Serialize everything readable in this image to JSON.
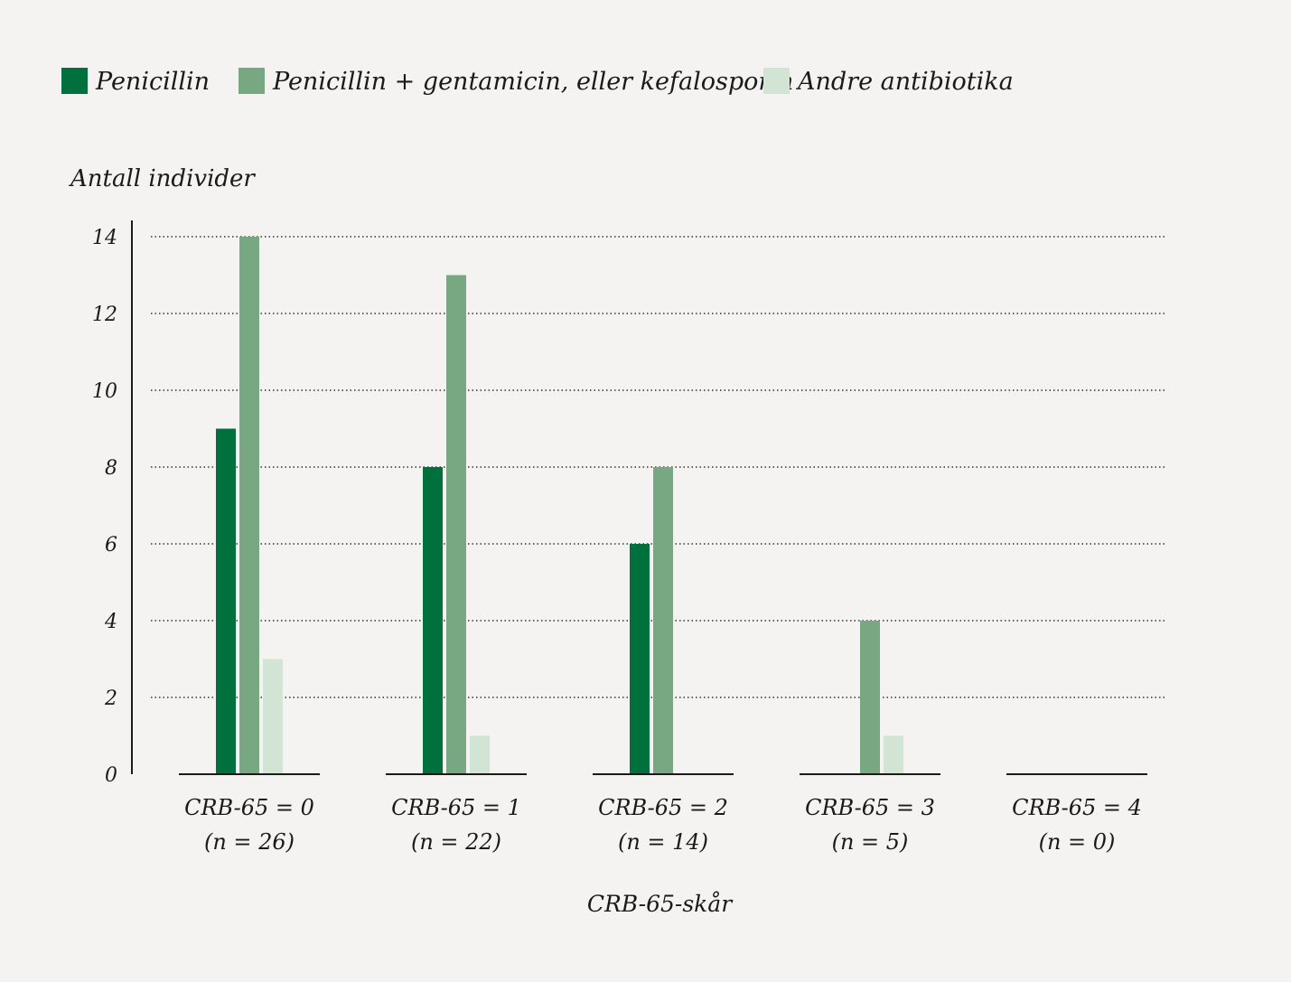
{
  "chart_data": {
    "type": "bar",
    "title": "",
    "ylabel": "Antall individer",
    "xlabel": "CRB-65-skår",
    "ylim": [
      0,
      14
    ],
    "yticks": [
      0,
      2,
      4,
      6,
      8,
      10,
      12,
      14
    ],
    "grid": "horizontal dotted",
    "legend_position": "top-left",
    "categories": [
      {
        "line1": "CRB-65 = 0",
        "line2": "(n = 26)"
      },
      {
        "line1": "CRB-65 = 1",
        "line2": "(n = 22)"
      },
      {
        "line1": "CRB-65 = 2",
        "line2": "(n = 14)"
      },
      {
        "line1": "CRB-65 = 3",
        "line2": "(n = 5)"
      },
      {
        "line1": "CRB-65 = 4",
        "line2": "(n = 0)"
      }
    ],
    "series": [
      {
        "name": "Penicillin",
        "color": "#00703c",
        "values": [
          9,
          8,
          6,
          0,
          0
        ]
      },
      {
        "name": "Penicillin + gentamicin, eller kefalosporin",
        "color": "#78a882",
        "values": [
          14,
          13,
          8,
          4,
          0
        ]
      },
      {
        "name": "Andre antibiotika",
        "color": "#d2e4d4",
        "values": [
          3,
          1,
          0,
          1,
          0
        ]
      }
    ]
  }
}
